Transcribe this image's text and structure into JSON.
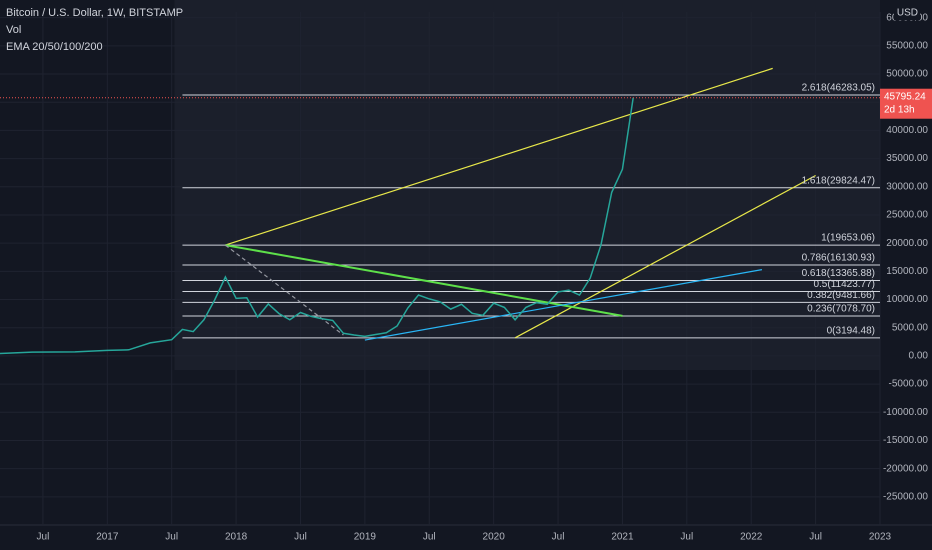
{
  "chart_data": {
    "type": "line",
    "title": "Bitcoin / U.S. Dollar, 1W, BITSTAMP",
    "indicators": [
      "Vol",
      "EMA 20/50/100/200"
    ],
    "currency": "USD",
    "x": [
      "2016-03",
      "2016-06",
      "2016-10",
      "2017-01",
      "2017-03",
      "2017-05",
      "2017-07",
      "2017-08",
      "2017-09",
      "2017-10",
      "2017-11",
      "2017-12",
      "2018-01",
      "2018-02",
      "2018-03",
      "2018-04",
      "2018-05",
      "2018-06",
      "2018-07",
      "2018-08",
      "2018-09",
      "2018-10",
      "2018-11",
      "2018-12",
      "2019-01",
      "2019-02",
      "2019-03",
      "2019-04",
      "2019-05",
      "2019-06",
      "2019-07",
      "2019-08",
      "2019-09",
      "2019-10",
      "2019-11",
      "2019-12",
      "2020-01",
      "2020-02",
      "2020-03",
      "2020-04",
      "2020-05",
      "2020-06",
      "2020-07",
      "2020-08",
      "2020-09",
      "2020-10",
      "2020-11",
      "2020-12",
      "2021-01",
      "2021-02"
    ],
    "series": [
      {
        "color": "#26a69a",
        "values": [
          420,
          670,
          700,
          970,
          1080,
          2300,
          2870,
          4700,
          4300,
          6400,
          9900,
          14000,
          10200,
          10300,
          6900,
          9200,
          7500,
          6400,
          7700,
          7000,
          6600,
          6300,
          4000,
          3700,
          3450,
          3800,
          4100,
          5300,
          8500,
          10800,
          10100,
          9600,
          8300,
          9150,
          7550,
          7200,
          9350,
          8600,
          6400,
          8600,
          9450,
          9150,
          11350,
          11650,
          10780,
          13800,
          19700,
          29000,
          33100,
          45800
        ]
      }
    ],
    "xlim": [
      "2016-03",
      "2023-01"
    ],
    "xticks": [
      {
        "value": "2016-07",
        "label": "Jul"
      },
      {
        "value": "2017-01",
        "label": "2017"
      },
      {
        "value": "2017-07",
        "label": "Jul"
      },
      {
        "value": "2018-01",
        "label": "2018"
      },
      {
        "value": "2018-07",
        "label": "Jul"
      },
      {
        "value": "2019-01",
        "label": "2019"
      },
      {
        "value": "2019-07",
        "label": "Jul"
      },
      {
        "value": "2020-01",
        "label": "2020"
      },
      {
        "value": "2020-07",
        "label": "Jul"
      },
      {
        "value": "2021-01",
        "label": "2021"
      },
      {
        "value": "2021-07",
        "label": "Jul"
      },
      {
        "value": "2022-01",
        "label": "2022"
      },
      {
        "value": "2022-07",
        "label": "Jul"
      },
      {
        "value": "2023-01",
        "label": "2023"
      }
    ],
    "ylim": [
      -30000,
      61000
    ],
    "yticks": [
      {
        "value": 60000,
        "label": "60000.00"
      },
      {
        "value": 55000,
        "label": "55000.00"
      },
      {
        "value": 50000,
        "label": "50000.00"
      },
      {
        "value": 45000,
        "label": "45000.00"
      },
      {
        "value": 40000,
        "label": "40000.00"
      },
      {
        "value": 35000,
        "label": "35000.00"
      },
      {
        "value": 30000,
        "label": "30000.00"
      },
      {
        "value": 25000,
        "label": "25000.00"
      },
      {
        "value": 20000,
        "label": "20000.00"
      },
      {
        "value": 15000,
        "label": "15000.00"
      },
      {
        "value": 10000,
        "label": "10000.00"
      },
      {
        "value": 5000,
        "label": "5000.00"
      },
      {
        "value": 0,
        "label": "0.00"
      },
      {
        "value": -5000,
        "label": "-5000.00"
      },
      {
        "value": -10000,
        "label": "-10000.00"
      },
      {
        "value": -15000,
        "label": "-15000.00"
      },
      {
        "value": -20000,
        "label": "-20000.00"
      },
      {
        "value": -25000,
        "label": "-25000.00"
      }
    ],
    "grid": true,
    "fib_start": "2017-08",
    "fib_levels": [
      {
        "value": 46283.05,
        "label": "2.618(46283.05)"
      },
      {
        "value": 29824.47,
        "label": "1.618(29824.47)"
      },
      {
        "value": 19653.06,
        "label": "1(19653.06)"
      },
      {
        "value": 16130.93,
        "label": "0.786(16130.93)"
      },
      {
        "value": 13365.88,
        "label": "0.618(13365.88)"
      },
      {
        "value": 11423.77,
        "label": "0.5(11423.77)"
      },
      {
        "value": 9481.66,
        "label": "0.382(9481.66)"
      },
      {
        "value": 7078.7,
        "label": "0.236(7078.70)"
      },
      {
        "value": 3194.48,
        "label": "0(3194.48)"
      }
    ],
    "trendlines": [
      {
        "color": "#e8e84a",
        "from": [
          "2017-12",
          19653
        ],
        "to": [
          "2022-03",
          51000
        ]
      },
      {
        "color": "#e8e84a",
        "from": [
          "2020-03",
          3200
        ],
        "to": [
          "2022-07",
          32000
        ]
      },
      {
        "color": "#5ee04a",
        "from": [
          "2017-12",
          19653
        ],
        "to": [
          "2021-01",
          7100
        ]
      },
      {
        "color": "#29b6f6",
        "from": [
          "2019-01",
          2800
        ],
        "to": [
          "2022-02",
          15300
        ]
      },
      {
        "color": "#9598a1",
        "dashed": true,
        "from": [
          "2017-12",
          19653
        ],
        "to": [
          "2018-11",
          3700
        ]
      }
    ],
    "last_price": 45795.24,
    "countdown": "2d 13h",
    "last_price_color": "#ef5350"
  }
}
